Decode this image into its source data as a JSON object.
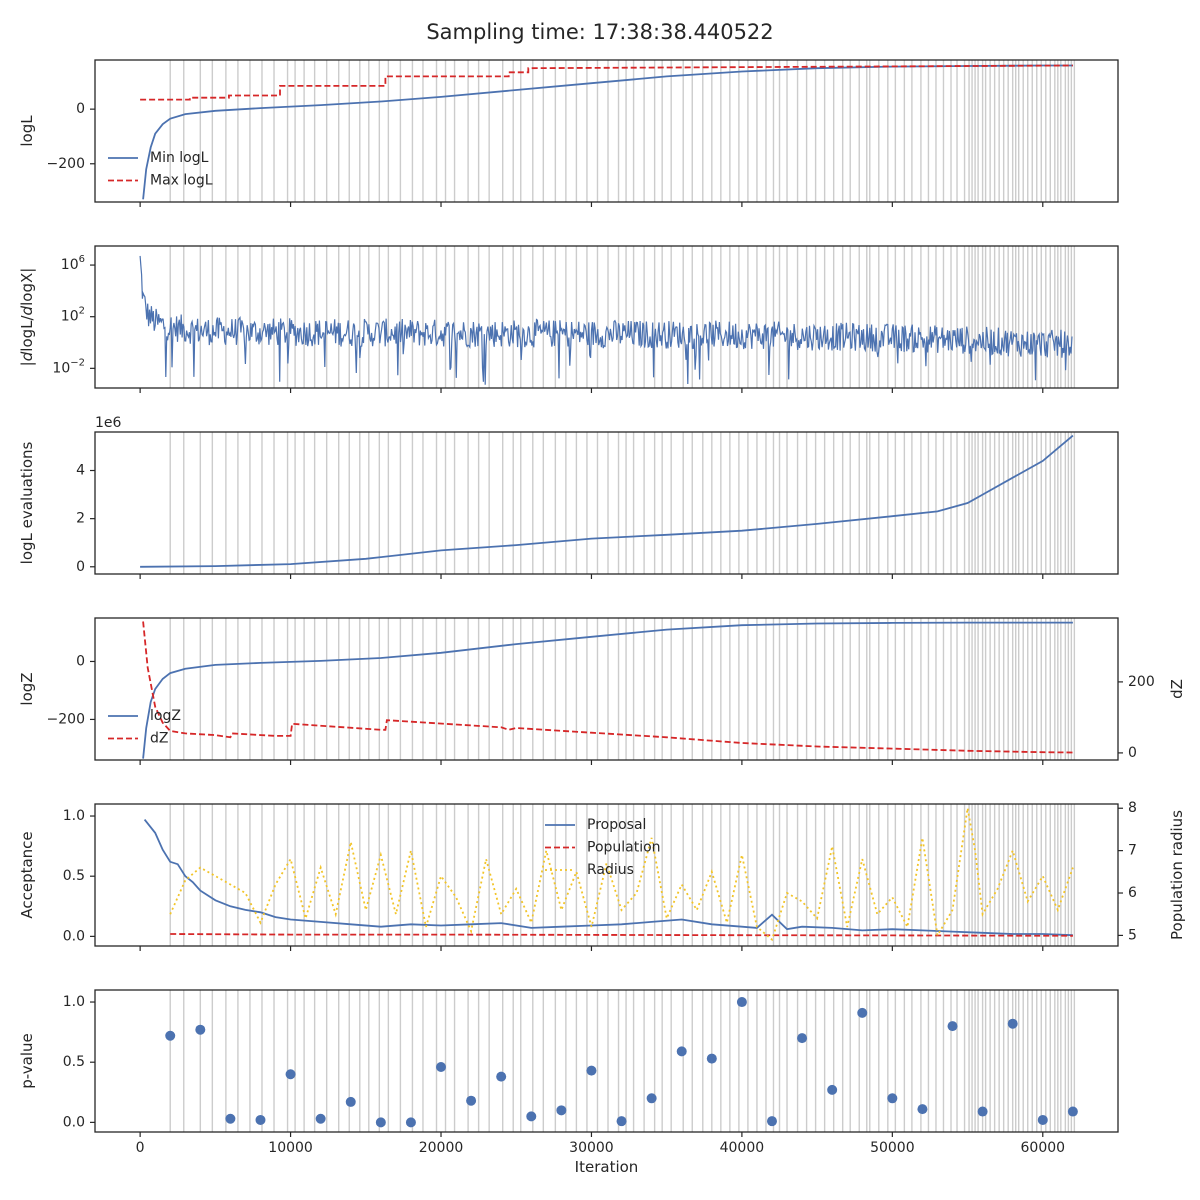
{
  "title": "Sampling time: 17:38:38.440522",
  "colors": {
    "blue": "#4c72b0",
    "red": "#d62728",
    "gold": "#f2c428",
    "grid": "#cccccc"
  },
  "chart_data": [
    {
      "id": "logl",
      "type": "line",
      "ylabel": "logL",
      "xlim": [
        -3000,
        65000
      ],
      "ylim": [
        -340,
        180
      ],
      "yticks": [
        {
          "v": 0,
          "label": "0"
        },
        {
          "v": -200,
          "label": "−200"
        }
      ],
      "legend": {
        "position": "lower-left",
        "entries": [
          "Min logL",
          "Max logL"
        ]
      },
      "series": [
        {
          "name": "Min logL",
          "style": "solid",
          "color": "#4c72b0",
          "x": [
            200,
            400,
            700,
            1000,
            1500,
            2000,
            3000,
            5000,
            8000,
            12000,
            16000,
            20000,
            25000,
            30000,
            35000,
            40000,
            45000,
            50000,
            55000,
            60000,
            62000
          ],
          "y": [
            -330,
            -220,
            -140,
            -90,
            -55,
            -35,
            -18,
            -6,
            4,
            15,
            28,
            45,
            70,
            95,
            120,
            138,
            150,
            156,
            158,
            160,
            160
          ]
        },
        {
          "name": "Max logL",
          "style": "dashed",
          "color": "#d62728",
          "x": [
            0,
            3300,
            3300,
            5900,
            5900,
            9300,
            9300,
            16300,
            16300,
            24500,
            24500,
            25800,
            25800,
            62000
          ],
          "y": [
            35,
            35,
            42,
            42,
            50,
            50,
            85,
            85,
            120,
            120,
            135,
            135,
            150,
            160
          ]
        }
      ]
    },
    {
      "id": "dlogl",
      "type": "line",
      "ylabel": "|dlogL/dlogX|",
      "yscale": "log",
      "xlim": [
        -3000,
        65000
      ],
      "ylim": [
        0.0003,
        30000000
      ],
      "yticks": [
        {
          "v": 1000000,
          "label": "10^6"
        },
        {
          "v": 100,
          "label": "10^2"
        },
        {
          "v": 0.01,
          "label": "10^−2"
        }
      ],
      "series": [
        {
          "name": "",
          "style": "solid",
          "color": "#4c72b0",
          "x": [
            0,
            200,
            500,
            1000,
            2000,
            4000,
            10000,
            20000,
            30000,
            40000,
            50000,
            55000,
            60000,
            62000
          ],
          "y_center": [
            3000000,
            3000,
            200,
            50,
            20,
            10,
            8,
            7,
            6,
            5,
            3,
            2,
            1,
            1
          ],
          "spike_min": 0.0005
        }
      ]
    },
    {
      "id": "evals",
      "type": "line",
      "ylabel": "logL evaluations",
      "offset_text": "1e6",
      "xlim": [
        -3000,
        65000
      ],
      "ylim": [
        -300000,
        5600000
      ],
      "yticks": [
        {
          "v": 0,
          "label": "0"
        },
        {
          "v": 2000000,
          "label": "2"
        },
        {
          "v": 4000000,
          "label": "4"
        }
      ],
      "series": [
        {
          "name": "",
          "style": "solid",
          "color": "#4c72b0",
          "x": [
            0,
            5000,
            10000,
            15000,
            20000,
            25000,
            30000,
            35000,
            40000,
            45000,
            50000,
            53000,
            55000,
            56000,
            58000,
            60000,
            62000
          ],
          "y": [
            0,
            30000,
            110000,
            330000,
            680000,
            900000,
            1170000,
            1330000,
            1500000,
            1780000,
            2100000,
            2300000,
            2650000,
            3000000,
            3700000,
            4400000,
            5450000
          ]
        }
      ]
    },
    {
      "id": "logz",
      "type": "line",
      "ylabel": "logZ",
      "ylabel_right": "dZ",
      "xlim": [
        -3000,
        65000
      ],
      "ylim": [
        -340,
        150
      ],
      "y2lim": [
        -20,
        380
      ],
      "yticks": [
        {
          "v": 0,
          "label": "0"
        },
        {
          "v": -200,
          "label": "−200"
        }
      ],
      "y2ticks": [
        {
          "v": 0,
          "label": "0"
        },
        {
          "v": 200,
          "label": "200"
        }
      ],
      "legend": {
        "position": "lower-left",
        "entries": [
          "logZ",
          "dZ"
        ]
      },
      "series": [
        {
          "name": "logZ",
          "style": "solid",
          "color": "#4c72b0",
          "axis": "left",
          "x": [
            200,
            400,
            700,
            1000,
            1500,
            2000,
            3000,
            5000,
            8000,
            12000,
            16000,
            20000,
            25000,
            30000,
            35000,
            40000,
            45000,
            50000,
            55000,
            60000,
            62000
          ],
          "y": [
            -335,
            -230,
            -140,
            -95,
            -60,
            -40,
            -25,
            -12,
            -5,
            2,
            12,
            30,
            60,
            85,
            110,
            125,
            131,
            133,
            134,
            134,
            134
          ]
        },
        {
          "name": "dZ",
          "style": "dashed",
          "color": "#d62728",
          "axis": "right",
          "x": [
            200,
            500,
            1000,
            1500,
            2000,
            3000,
            5000,
            6000,
            6100,
            9000,
            10000,
            10100,
            16000,
            16300,
            16400,
            24000,
            24500,
            25000,
            30000,
            35000,
            40000,
            45000,
            50000,
            55000,
            60000,
            62000
          ],
          "y": [
            370,
            240,
            130,
            85,
            62,
            55,
            50,
            44,
            55,
            48,
            48,
            82,
            65,
            65,
            92,
            72,
            65,
            70,
            57,
            44,
            28,
            18,
            12,
            6,
            2,
            1
          ]
        }
      ]
    },
    {
      "id": "accept",
      "type": "line",
      "ylabel": "Acceptance",
      "ylabel_right": "Population radius",
      "xlim": [
        -3000,
        65000
      ],
      "ylim": [
        -0.08,
        1.1
      ],
      "y2lim": [
        4.75,
        8.1
      ],
      "yticks": [
        {
          "v": 1,
          "label": "1.0"
        },
        {
          "v": 0.5,
          "label": "0.5"
        },
        {
          "v": 0,
          "label": "0.0"
        }
      ],
      "y2ticks": [
        {
          "v": 8,
          "label": "8"
        },
        {
          "v": 7,
          "label": "7"
        },
        {
          "v": 6,
          "label": "6"
        },
        {
          "v": 5,
          "label": "5"
        }
      ],
      "legend": {
        "position": "upper-center",
        "entries": [
          "Proposal",
          "Population",
          "Radius"
        ]
      },
      "series": [
        {
          "name": "Proposal",
          "style": "solid",
          "color": "#4c72b0",
          "axis": "left",
          "x": [
            300,
            1000,
            1500,
            2000,
            2500,
            3000,
            3500,
            4000,
            5000,
            6000,
            7000,
            8000,
            9000,
            10000,
            12000,
            14000,
            16000,
            18000,
            20000,
            22000,
            24000,
            26000,
            28000,
            30000,
            32000,
            34000,
            36000,
            38000,
            40000,
            41000,
            42000,
            43000,
            44000,
            46000,
            48000,
            50000,
            52000,
            54000,
            56000,
            58000,
            60000,
            62000
          ],
          "y": [
            0.97,
            0.86,
            0.72,
            0.62,
            0.6,
            0.5,
            0.45,
            0.38,
            0.3,
            0.25,
            0.22,
            0.2,
            0.16,
            0.14,
            0.12,
            0.1,
            0.08,
            0.1,
            0.09,
            0.1,
            0.11,
            0.07,
            0.08,
            0.09,
            0.1,
            0.12,
            0.14,
            0.1,
            0.08,
            0.07,
            0.18,
            0.06,
            0.08,
            0.07,
            0.05,
            0.06,
            0.05,
            0.04,
            0.03,
            0.02,
            0.02,
            0.01
          ]
        },
        {
          "name": "Population",
          "style": "dashed",
          "color": "#d62728",
          "axis": "left",
          "x": [
            2000,
            10000,
            20000,
            30000,
            40000,
            50000,
            62000
          ],
          "y": [
            0.02,
            0.015,
            0.015,
            0.012,
            0.01,
            0.008,
            0.005
          ]
        },
        {
          "name": "Radius",
          "style": "dotted",
          "color": "#f2c428",
          "axis": "right",
          "x": [
            2000,
            3000,
            4000,
            6000,
            7000,
            8000,
            9000,
            10000,
            11000,
            12000,
            13000,
            14000,
            15000,
            16000,
            17000,
            18000,
            19000,
            20000,
            21000,
            22000,
            23000,
            24000,
            25000,
            26000,
            27000,
            28000,
            29000,
            30000,
            31000,
            32000,
            33000,
            34000,
            35000,
            36000,
            37000,
            38000,
            39000,
            40000,
            41000,
            42000,
            43000,
            44000,
            45000,
            46000,
            47000,
            48000,
            49000,
            50000,
            51000,
            52000,
            53000,
            54000,
            55000,
            55500,
            56000,
            57000,
            58000,
            59000,
            60000,
            61000,
            62000
          ],
          "y": [
            5.5,
            6.3,
            6.6,
            6.2,
            6.0,
            5.3,
            6.2,
            6.8,
            5.4,
            6.6,
            5.5,
            7.2,
            5.6,
            6.9,
            5.5,
            7.0,
            5.2,
            6.4,
            5.9,
            5.1,
            6.8,
            5.5,
            6.1,
            5.3,
            7.0,
            5.6,
            6.5,
            5.2,
            6.7,
            5.6,
            6.0,
            7.3,
            5.4,
            6.2,
            5.6,
            6.5,
            5.3,
            6.9,
            5.2,
            4.9,
            6.0,
            5.8,
            5.4,
            7.1,
            5.2,
            6.8,
            5.5,
            5.9,
            5.2,
            7.3,
            5.0,
            5.6,
            8.0,
            7.0,
            5.5,
            6.1,
            7.0,
            5.8,
            6.4,
            5.6,
            6.6
          ]
        }
      ]
    },
    {
      "id": "pvalue",
      "type": "scatter",
      "ylabel": "p-value",
      "xlabel": "Iteration",
      "xlim": [
        -3000,
        65000
      ],
      "ylim": [
        -0.08,
        1.1
      ],
      "yticks": [
        {
          "v": 1,
          "label": "1.0"
        },
        {
          "v": 0.5,
          "label": "0.5"
        },
        {
          "v": 0,
          "label": "0.0"
        }
      ],
      "xticks": [
        {
          "v": 0,
          "label": "0"
        },
        {
          "v": 10000,
          "label": "10000"
        },
        {
          "v": 20000,
          "label": "20000"
        },
        {
          "v": 30000,
          "label": "30000"
        },
        {
          "v": 40000,
          "label": "40000"
        },
        {
          "v": 50000,
          "label": "50000"
        },
        {
          "v": 60000,
          "label": "60000"
        }
      ],
      "series": [
        {
          "name": "",
          "color": "#4c72b0",
          "x": [
            2000,
            4000,
            6000,
            8000,
            10000,
            12000,
            14000,
            16000,
            18000,
            20000,
            22000,
            24000,
            26000,
            28000,
            30000,
            32000,
            34000,
            36000,
            38000,
            40000,
            42000,
            44000,
            46000,
            48000,
            50000,
            52000,
            54000,
            56000,
            58000,
            60000,
            62000
          ],
          "y": [
            0.72,
            0.77,
            0.03,
            0.02,
            0.4,
            0.03,
            0.17,
            0.0,
            0.0,
            0.46,
            0.18,
            0.38,
            0.05,
            0.1,
            0.43,
            0.01,
            0.2,
            0.59,
            0.53,
            1.0,
            0.01,
            0.7,
            0.27,
            0.91,
            0.2,
            0.11,
            0.8,
            0.09,
            0.82,
            0.02,
            0.09
          ]
        }
      ]
    }
  ],
  "vlines_x": [
    2000,
    2900,
    4000,
    4800,
    5700,
    6500,
    7300,
    8100,
    8900,
    9800,
    10300,
    10900,
    11600,
    12400,
    13200,
    13900,
    14600,
    15200,
    15900,
    16500,
    17300,
    18100,
    18800,
    19700,
    20300,
    20900,
    21800,
    22500,
    23200,
    24100,
    24800,
    25300,
    26100,
    26800,
    27600,
    28300,
    29000,
    29700,
    30400,
    31100,
    31800,
    32300,
    32800,
    33500,
    34200,
    34700,
    35300,
    36100,
    36700,
    37400,
    38000,
    38600,
    39200,
    39800,
    40400,
    41000,
    41600,
    42100,
    42500,
    43000,
    43700,
    44300,
    44900,
    45500,
    46100,
    46700,
    47200,
    47800,
    48300,
    48500,
    49100,
    49700,
    50200,
    50800,
    51300,
    51900,
    52400,
    52900,
    53400,
    53900,
    54300,
    54800,
    55100,
    55300,
    55500,
    55700,
    56000,
    56200,
    56500,
    56800,
    57100,
    57400,
    57700,
    58000,
    58200,
    58400,
    58700,
    59000,
    59300,
    59600,
    59900,
    60200,
    60500,
    60800,
    61000,
    61200,
    61500,
    61700,
    61900,
    62100
  ]
}
